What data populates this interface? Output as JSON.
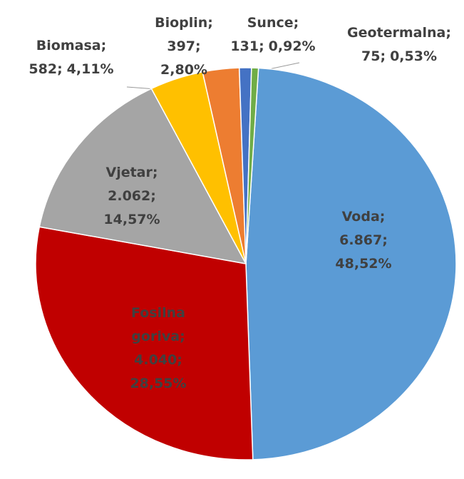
{
  "chart_data": {
    "type": "pie",
    "categories": [
      "Voda;",
      "Fosilna goriva;",
      "Vjetar;",
      "Biomasa;",
      "Bioplin;",
      "Sunce;",
      "Geotermalna;"
    ],
    "values": [
      6867,
      4040,
      2062,
      582,
      397,
      131,
      75
    ],
    "value_labels": [
      "6.867;",
      "4.040;",
      "2.062;",
      "582;",
      "397;",
      "131;",
      "75;"
    ],
    "percents": [
      48.52,
      28.55,
      14.57,
      4.11,
      2.8,
      0.92,
      0.53
    ],
    "percent_labels": [
      "48,52%",
      "28,55%",
      "14,57%",
      "4,11%",
      "2,80%",
      "0,92%",
      "0,53%"
    ],
    "colors": [
      "#5b9bd5",
      "#c00000",
      "#a5a5a5",
      "#ffc000",
      "#ed7d31",
      "#4472c4",
      "#70ad47"
    ]
  }
}
